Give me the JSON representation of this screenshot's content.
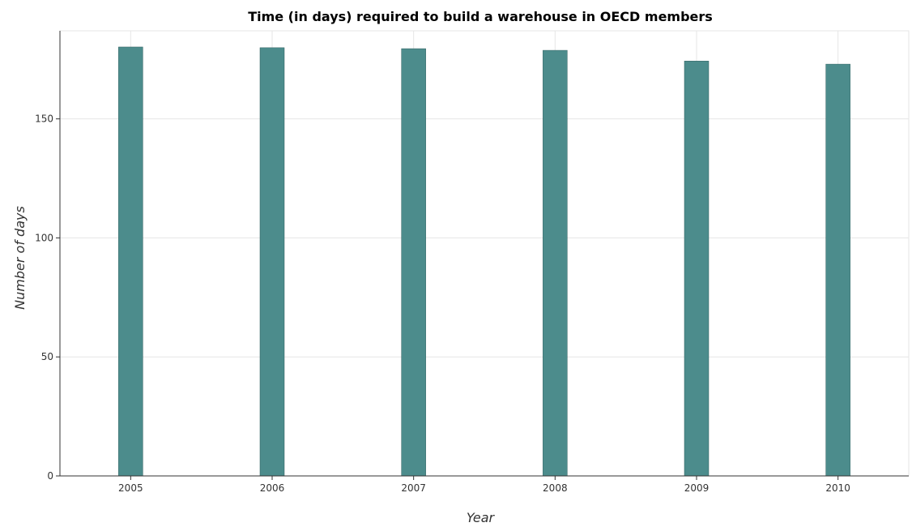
{
  "chart_data": {
    "type": "bar",
    "title": "Time (in days) required to build a warehouse in OECD members",
    "xlabel": "Year",
    "ylabel": "Number of days",
    "categories": [
      "2005",
      "2006",
      "2007",
      "2008",
      "2009",
      "2010"
    ],
    "values": [
      180.2,
      179.9,
      179.5,
      178.8,
      174.3,
      173.0
    ],
    "ylim": [
      0,
      187
    ],
    "yticks": [
      0,
      50,
      100,
      150
    ],
    "grid": true,
    "bar_color": "#4c8c8c"
  }
}
